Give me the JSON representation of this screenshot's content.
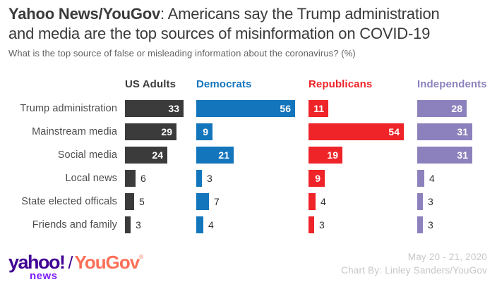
{
  "page": {
    "title_lead": "Yahoo News/YouGov",
    "title_rest": ": Americans say the Trump administration\nand media are the top sources of misinformation on COVID-19",
    "subtitle": "What is the top source of false or misleading information about the coronavirus? (%)"
  },
  "chart_data": {
    "type": "bar",
    "orientation": "horizontal",
    "title": "Yahoo News/YouGov: Americans say the Trump administration and media are the top sources of misinformation on COVID-19",
    "subtitle": "What is the top source of false or misleading information about the coronavirus? (%)",
    "categories": [
      "Trump administration",
      "Mainstream media",
      "Social media",
      "Local news",
      "State elected officals",
      "Friends and family"
    ],
    "series": [
      {
        "name": "US Adults",
        "color": "#3b3b3b",
        "values": [
          33,
          29,
          24,
          6,
          5,
          3
        ]
      },
      {
        "name": "Democrats",
        "color": "#1375bc",
        "values": [
          56,
          9,
          21,
          3,
          7,
          4
        ]
      },
      {
        "name": "Republicans",
        "color": "#ee2428",
        "values": [
          11,
          54,
          19,
          9,
          4,
          3
        ]
      },
      {
        "name": "Independents",
        "color": "#8d81bd",
        "values": [
          28,
          31,
          31,
          4,
          3,
          3
        ]
      }
    ],
    "xlim": [
      0,
      56
    ],
    "value_labels": "every bar labeled; label drawn inside bar in white when value >= 9, otherwise outside in dark gray",
    "grid": false,
    "legend_position": "column headers above each bar group"
  },
  "footer": {
    "logo": {
      "yahoo": "yahoo!",
      "news": "news",
      "separator": "/",
      "yougov": "YouGov",
      "registered": "®",
      "yahoo_purple": "#410093",
      "news_violet": "#7e1fff",
      "yougov_coral": "#fb7058"
    },
    "date_range": "May 20 - 21, 2020",
    "credit": "Chart By: Linley Sanders/YouGov"
  }
}
